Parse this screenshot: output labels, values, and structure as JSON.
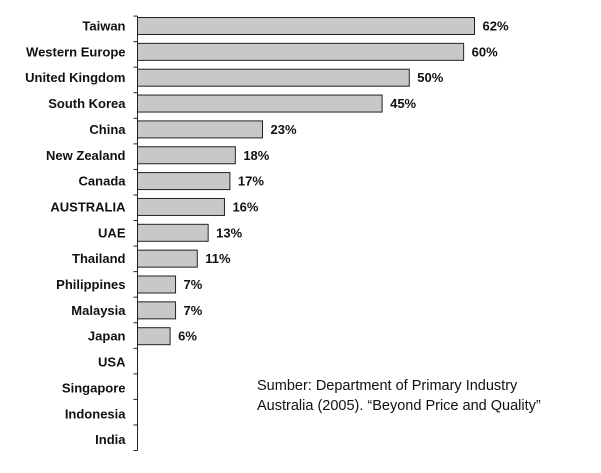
{
  "chart_data": {
    "type": "bar",
    "orientation": "horizontal",
    "categories": [
      "Taiwan",
      "Western Europe",
      "United Kingdom",
      "South Korea",
      "China",
      "New Zealand",
      "Canada",
      "AUSTRALIA",
      "UAE",
      "Thailand",
      "Philippines",
      "Malaysia",
      "Japan",
      "USA",
      "Singapore",
      "Indonesia",
      "India"
    ],
    "values": [
      62,
      60,
      50,
      45,
      23,
      18,
      17,
      16,
      13,
      11,
      7,
      7,
      6,
      null,
      null,
      null,
      null
    ],
    "value_labels": [
      "62%",
      "60%",
      "50%",
      "45%",
      "23%",
      "18%",
      "17%",
      "16%",
      "13%",
      "11%",
      "7%",
      "7%",
      "6%",
      "",
      "",
      "",
      ""
    ],
    "unit": "%",
    "xlim": [
      0,
      62
    ],
    "grid": false,
    "legend": "none",
    "bar_color": "#c8c8c8",
    "bar_outline_color": "#222222"
  },
  "source_note": {
    "line1": "Sumber: Department of Primary Industry",
    "line2": "Australia (2005). “Beyond Price and Quality”"
  }
}
